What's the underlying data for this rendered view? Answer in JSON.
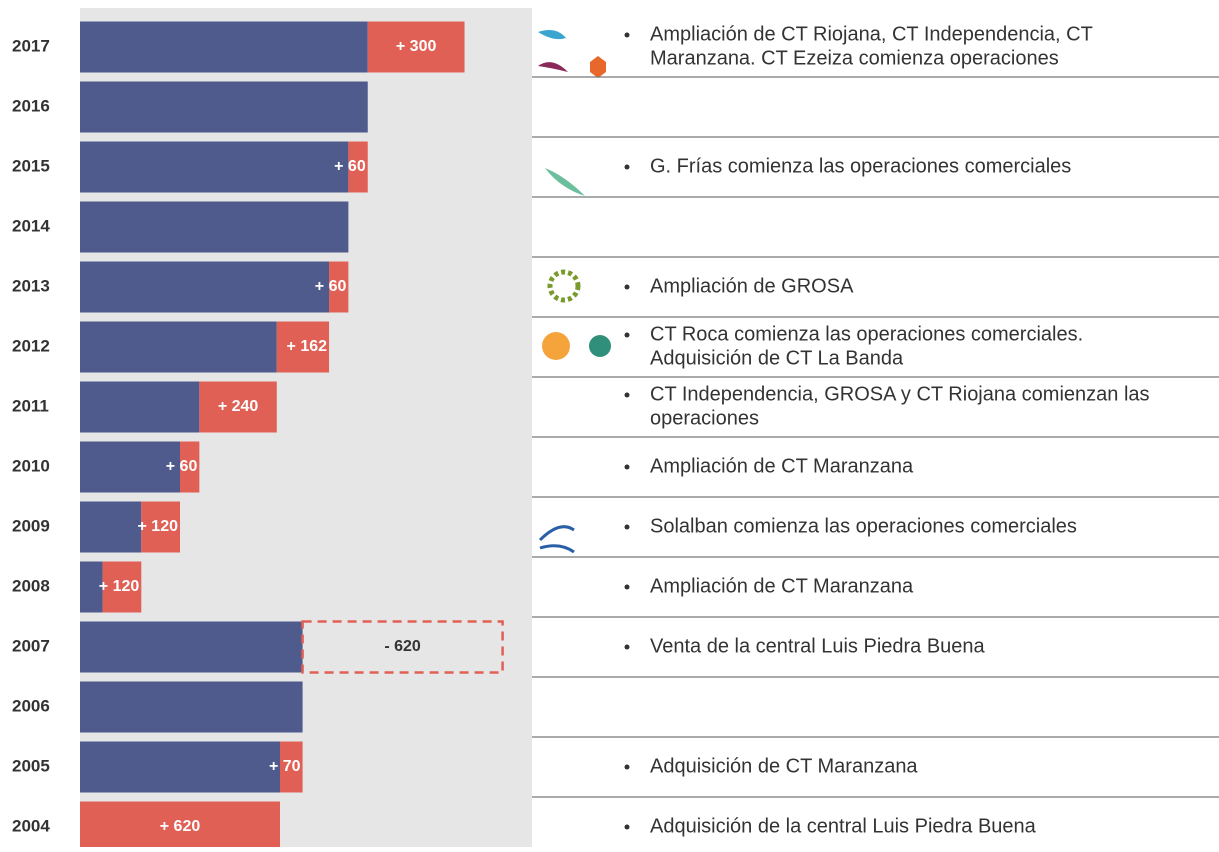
{
  "chart_data": {
    "type": "bar",
    "categories": [
      "2017",
      "2016",
      "2015",
      "2014",
      "2013",
      "2012",
      "2011",
      "2010",
      "2009",
      "2008",
      "2007",
      "2006",
      "2005",
      "2004"
    ],
    "values": [
      300,
      0,
      60,
      0,
      60,
      162,
      240,
      60,
      120,
      120,
      -620,
      0,
      70,
      620
    ],
    "value_labels": [
      "+ 300",
      null,
      "+ 60",
      null,
      "+ 60",
      "+ 162",
      "+ 240",
      "+ 60",
      "+ 120",
      "+ 120",
      "- 620",
      null,
      "+ 70",
      "+ 620"
    ],
    "colors": {
      "base": "#4f5b8c",
      "change": "#e06055"
    },
    "events": [
      [
        "Ampliación de CT Riojana, CT Independencia, CT",
        "Maranzana. CT Ezeiza comienza operaciones"
      ],
      null,
      [
        "G. Frías comienza las operaciones comerciales"
      ],
      null,
      [
        "Ampliación de GROSA"
      ],
      [
        "CT Roca comienza las operaciones comerciales.",
        "Adquisición  de CT La Banda"
      ],
      [
        "CT Independencia,  GROSA y CT Riojana comienzan las",
        "operaciones"
      ],
      [
        "Ampliación de CT Maranzana"
      ],
      [
        "Solalban comienza las operaciones comerciales"
      ],
      [
        "Ampliación de CT Maranzana"
      ],
      [
        "Venta de la central Luis Piedra Buena"
      ],
      null,
      [
        "Adquisición de CT Maranzana"
      ],
      [
        "Adquisición de la central Luis Piedra Buena"
      ]
    ]
  }
}
